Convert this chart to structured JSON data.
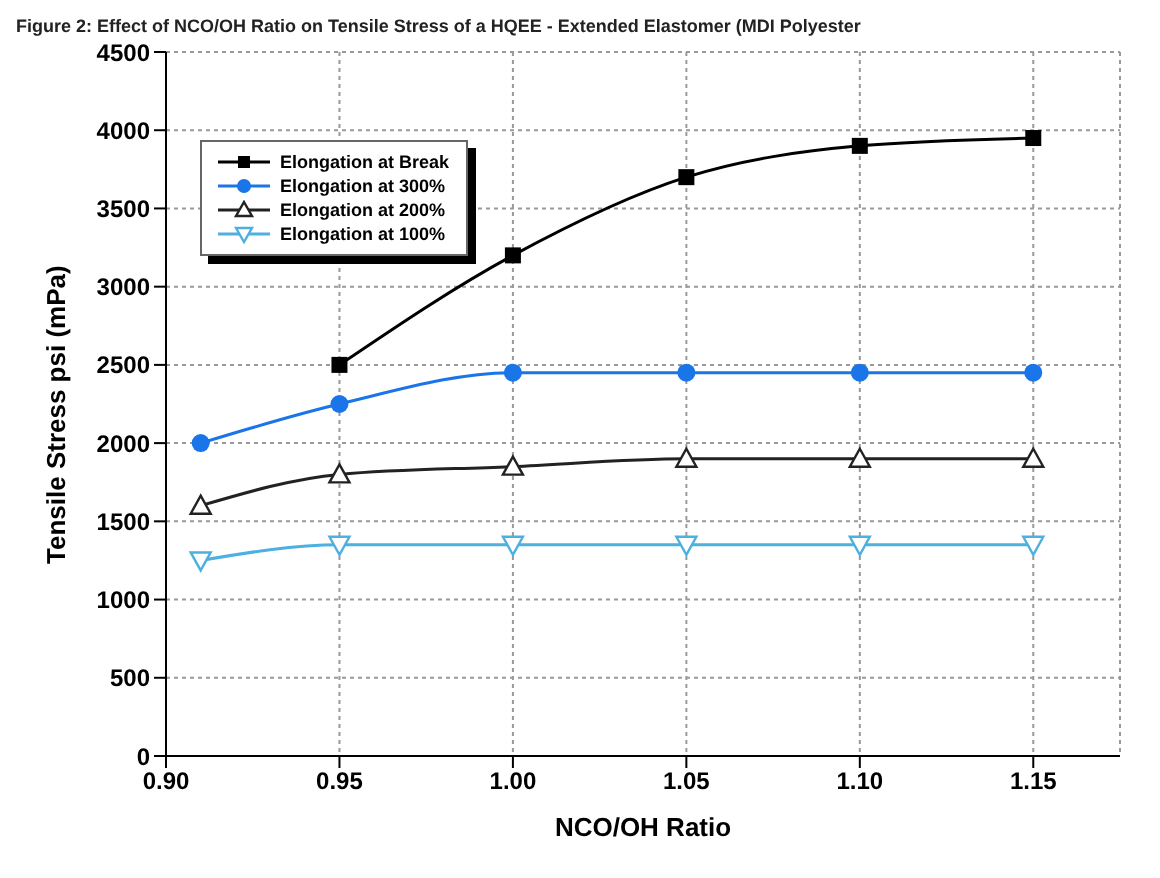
{
  "chart_data": {
    "type": "line",
    "title": "Figure 2: Effect of NCO/OH Ratio on Tensile Stress of a HQEE - Extended Elastomer (MDI Polyester",
    "xlabel": "NCO/OH Ratio",
    "ylabel": "Tensile Stress psi (mPa)",
    "x": [
      0.91,
      0.95,
      1.0,
      1.05,
      1.1,
      1.15
    ],
    "series": [
      {
        "name": "Elongation at Break",
        "color": "#000000",
        "marker": "square",
        "values": [
          null,
          2500,
          3200,
          3700,
          3900,
          3950
        ]
      },
      {
        "name": "Elongation at 300%",
        "color": "#1a75e8",
        "marker": "circle",
        "values": [
          2000,
          2250,
          2450,
          2450,
          2450,
          2450
        ]
      },
      {
        "name": "Elongation at 200%",
        "color": "#222222",
        "marker": "triangle",
        "values": [
          1600,
          1800,
          1850,
          1900,
          1900,
          1900
        ]
      },
      {
        "name": "Elongation at 100%",
        "color": "#4cb0e0",
        "marker": "triangle-down",
        "values": [
          1250,
          1350,
          1350,
          1350,
          1350,
          1350
        ]
      }
    ],
    "xlim": [
      0.9,
      1.175
    ],
    "xticks": [
      {
        "value": 0.9,
        "label": "0.90"
      },
      {
        "value": 0.95,
        "label": "0.95"
      },
      {
        "value": 1.0,
        "label": "1.00"
      },
      {
        "value": 1.05,
        "label": "1.05"
      },
      {
        "value": 1.1,
        "label": "1.10"
      },
      {
        "value": 1.15,
        "label": "1.15"
      }
    ],
    "ylim": [
      0,
      4500
    ],
    "yticks": [
      0,
      500,
      1000,
      1500,
      2000,
      2500,
      3000,
      3500,
      4000,
      4500
    ],
    "grid": true,
    "legend": "top left",
    "line_style": "solid"
  }
}
